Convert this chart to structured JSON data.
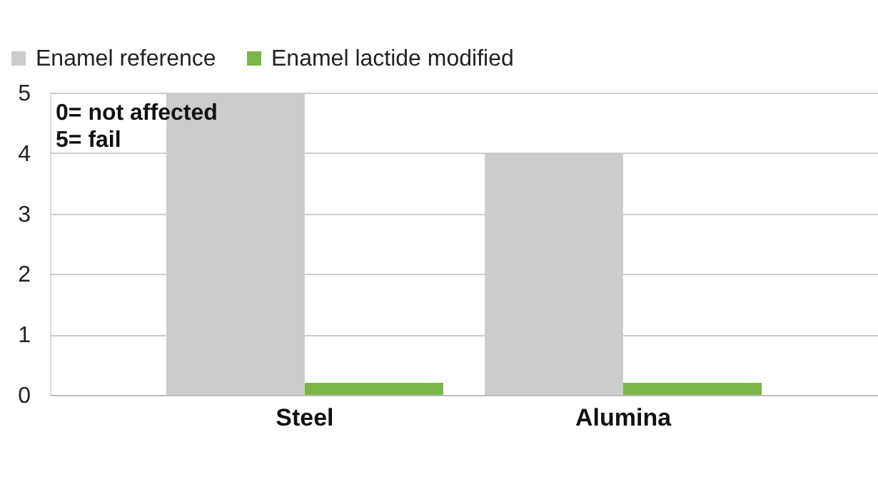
{
  "chart_data": {
    "type": "bar",
    "categories": [
      "Steel",
      "Alumina"
    ],
    "series": [
      {
        "name": "Enamel reference",
        "color": "#cccccc",
        "values": [
          5,
          4
        ]
      },
      {
        "name": "Enamel lactide modified",
        "color": "#7ab648",
        "values": [
          0.2,
          0.2
        ]
      }
    ],
    "ylim": [
      0,
      5
    ],
    "yticks": [
      0,
      1,
      2,
      3,
      4,
      5
    ],
    "grid": "y",
    "legend": "top left",
    "annotations": [
      "0= not affected",
      "5= fail"
    ]
  }
}
